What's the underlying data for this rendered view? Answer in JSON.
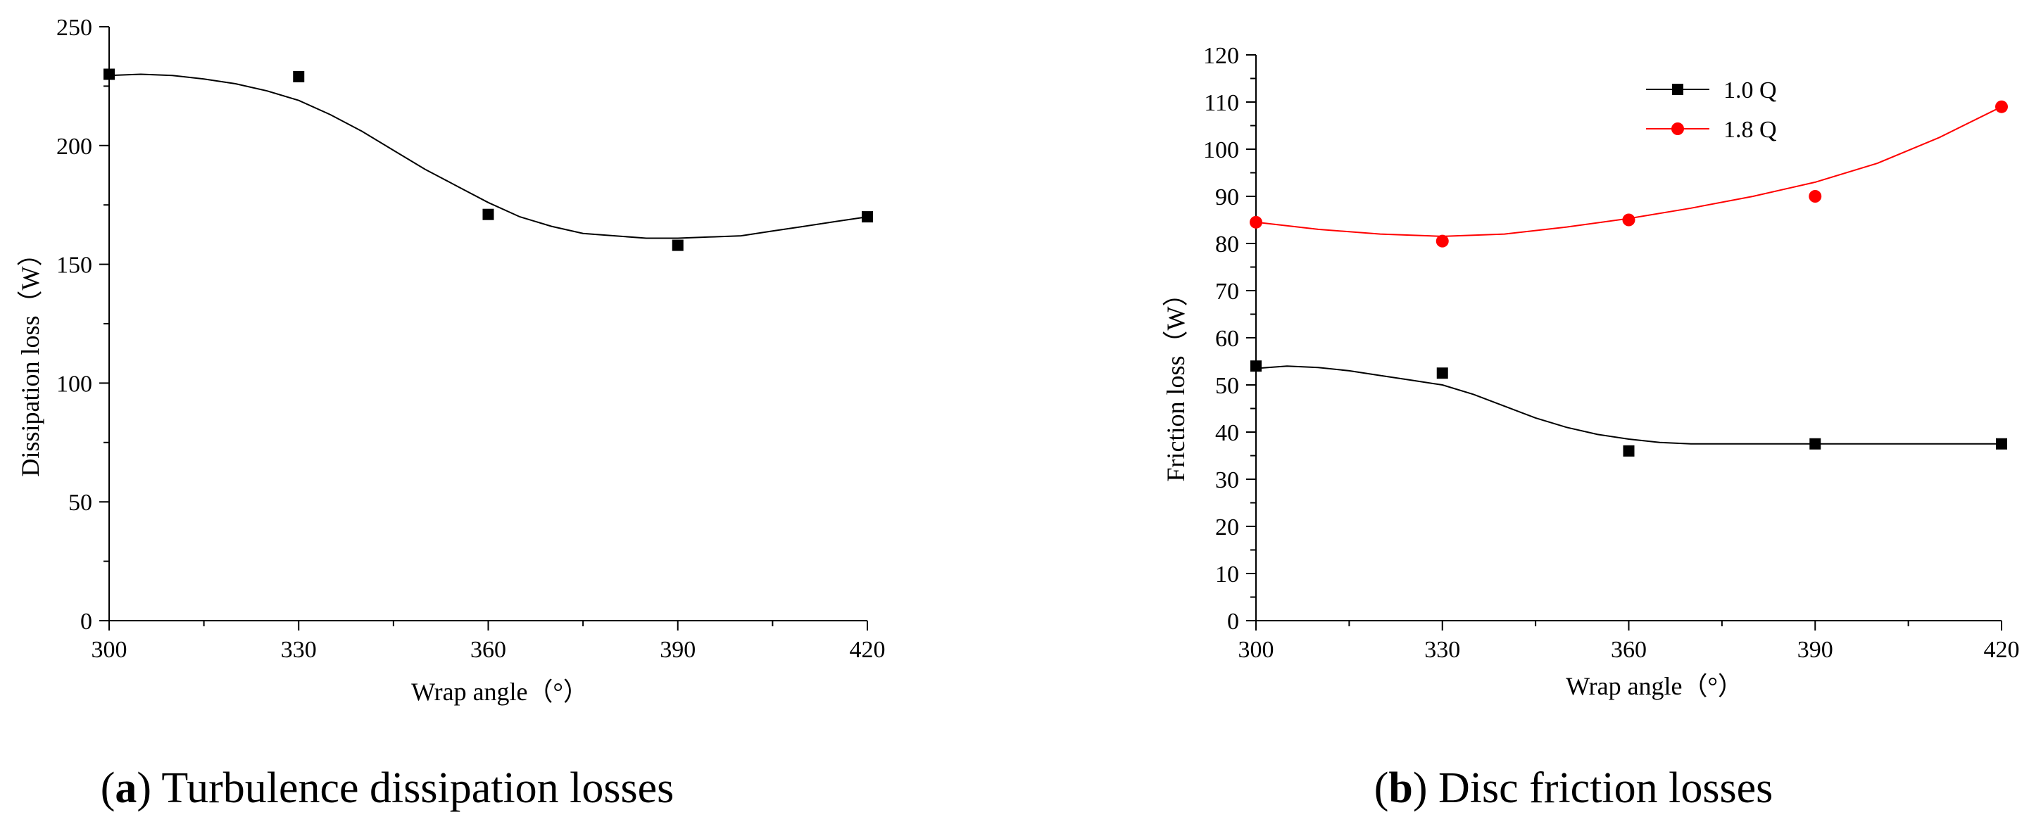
{
  "chart_data": [
    {
      "type": "scatter",
      "panel_letter": "a",
      "caption": "Turbulence dissipation losses",
      "xlabel": "Wrap angle（°）",
      "ylabel": "Dissipation loss（W）",
      "xlim": [
        300,
        420
      ],
      "ylim": [
        0,
        250
      ],
      "xticks": [
        300,
        330,
        360,
        390,
        420
      ],
      "yticks": [
        0,
        50,
        100,
        150,
        200,
        250
      ],
      "grid": false,
      "series": [
        {
          "name": "Dissipation loss",
          "color": "#000000",
          "marker": "square",
          "x": [
            300,
            330,
            360,
            390,
            420
          ],
          "y": [
            230,
            229,
            171,
            158,
            170
          ],
          "fit": [
            [
              300,
              229.5
            ],
            [
              305,
              230
            ],
            [
              310,
              229.5
            ],
            [
              315,
              228
            ],
            [
              320,
              226
            ],
            [
              325,
              223
            ],
            [
              330,
              219
            ],
            [
              335,
              213
            ],
            [
              340,
              206
            ],
            [
              345,
              198
            ],
            [
              350,
              190
            ],
            [
              355,
              183
            ],
            [
              360,
              176
            ],
            [
              365,
              170
            ],
            [
              370,
              166
            ],
            [
              375,
              163
            ],
            [
              380,
              162
            ],
            [
              385,
              161
            ],
            [
              390,
              161
            ],
            [
              395,
              161.5
            ],
            [
              400,
              162
            ],
            [
              405,
              164
            ],
            [
              410,
              166
            ],
            [
              415,
              168
            ],
            [
              420,
              170
            ]
          ]
        }
      ]
    },
    {
      "type": "scatter",
      "panel_letter": "b",
      "caption": "Disc friction losses",
      "xlabel": "Wrap angle（°）",
      "ylabel": "Friction loss（W）",
      "xlim": [
        300,
        420
      ],
      "ylim": [
        0,
        120
      ],
      "xticks": [
        300,
        330,
        360,
        390,
        420
      ],
      "yticks": [
        0,
        10,
        20,
        30,
        40,
        50,
        60,
        70,
        80,
        90,
        100,
        110,
        120
      ],
      "grid": false,
      "legend": "top-center",
      "series": [
        {
          "name": "1.0 Q",
          "color": "#000000",
          "marker": "square",
          "x": [
            300,
            330,
            360,
            390,
            420
          ],
          "y": [
            54,
            52.5,
            36,
            37.5,
            37.5
          ],
          "fit": [
            [
              300,
              53.5
            ],
            [
              305,
              54
            ],
            [
              310,
              53.7
            ],
            [
              315,
              53
            ],
            [
              320,
              52
            ],
            [
              325,
              51
            ],
            [
              330,
              50
            ],
            [
              335,
              48
            ],
            [
              340,
              45.5
            ],
            [
              345,
              43
            ],
            [
              350,
              41
            ],
            [
              355,
              39.5
            ],
            [
              360,
              38.5
            ],
            [
              365,
              37.8
            ],
            [
              370,
              37.5
            ],
            [
              375,
              37.5
            ],
            [
              380,
              37.5
            ],
            [
              390,
              37.5
            ],
            [
              400,
              37.5
            ],
            [
              410,
              37.5
            ],
            [
              420,
              37.5
            ]
          ]
        },
        {
          "name": "1.8 Q",
          "color": "#ff0000",
          "marker": "circle",
          "x": [
            300,
            330,
            360,
            390,
            420
          ],
          "y": [
            84.5,
            80.5,
            85,
            90,
            109
          ],
          "fit": [
            [
              300,
              84.5
            ],
            [
              310,
              83
            ],
            [
              320,
              82
            ],
            [
              330,
              81.5
            ],
            [
              340,
              82
            ],
            [
              350,
              83.5
            ],
            [
              360,
              85.3
            ],
            [
              370,
              87.5
            ],
            [
              380,
              90
            ],
            [
              390,
              93
            ],
            [
              400,
              97
            ],
            [
              410,
              102.5
            ],
            [
              420,
              109
            ]
          ]
        }
      ]
    }
  ]
}
